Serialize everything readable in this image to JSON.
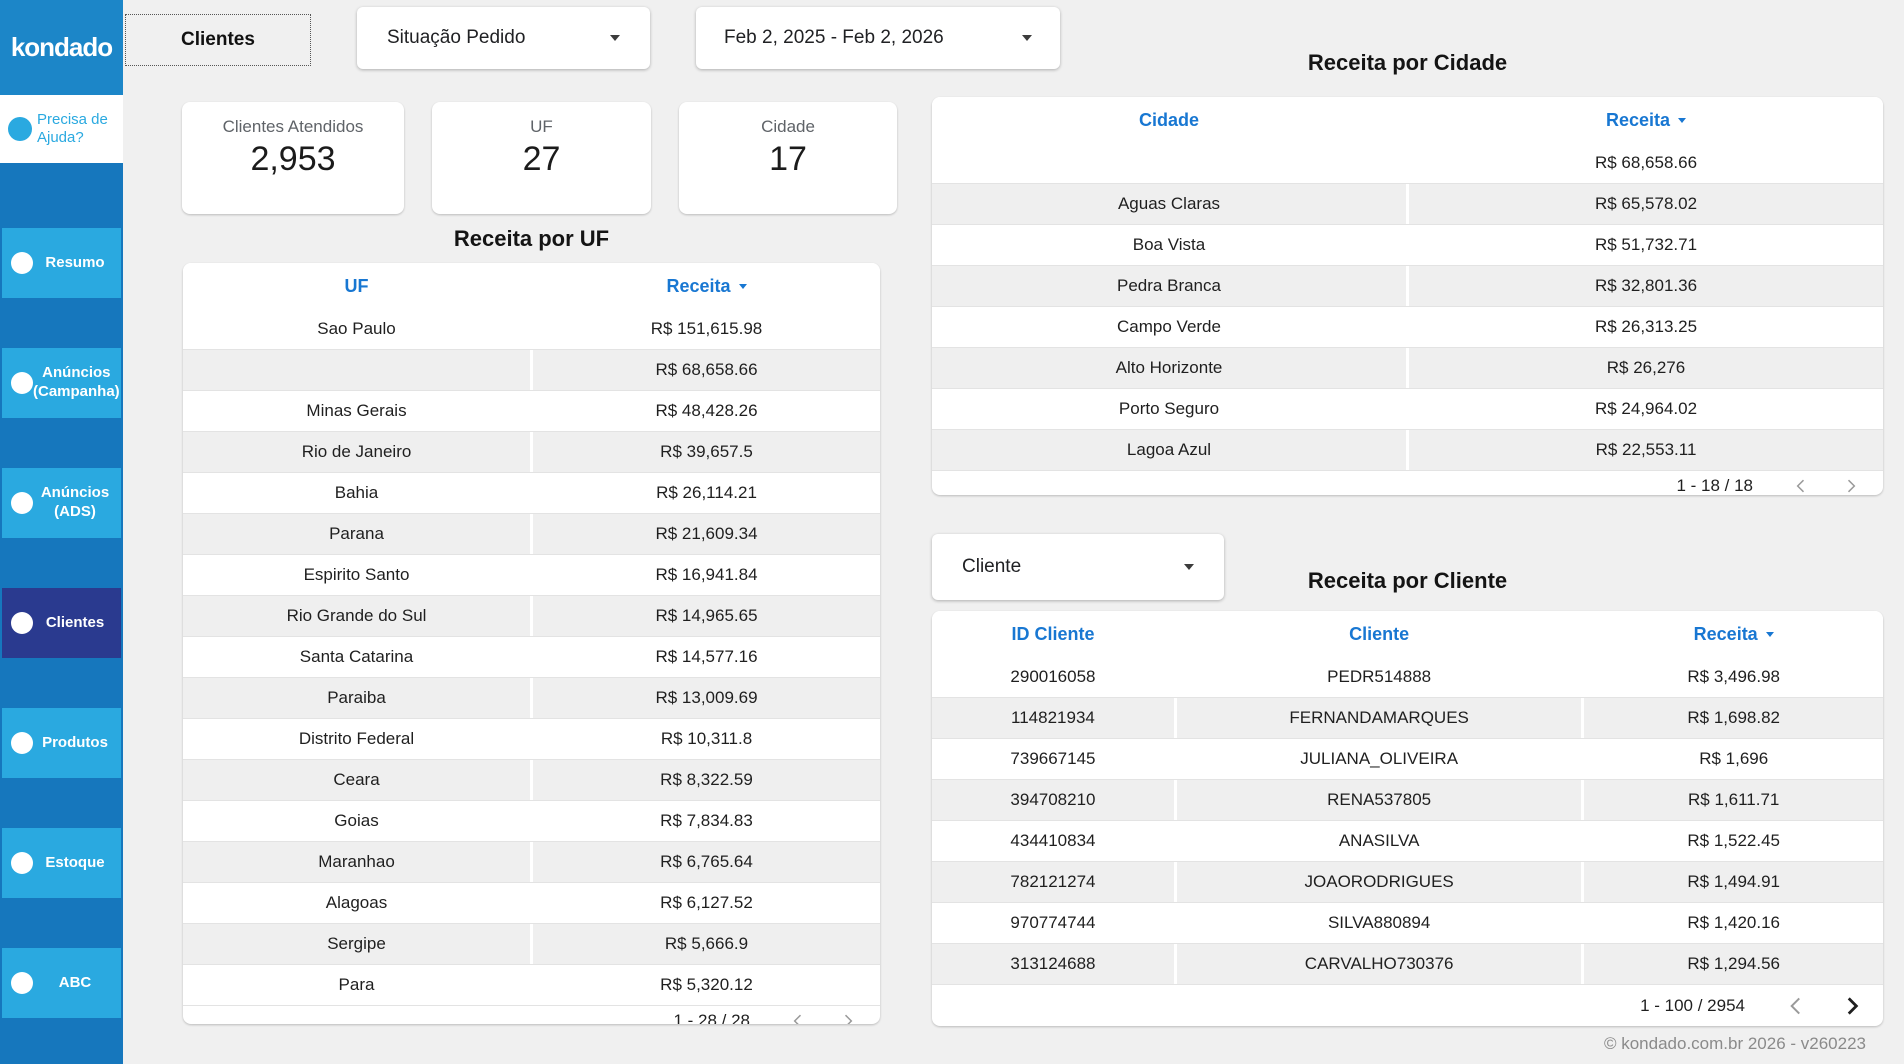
{
  "sidebar": {
    "logo": "kondado",
    "help_label": "Precisa de Ajuda?",
    "items": [
      {
        "label": "Resumo",
        "selected": false
      },
      {
        "label": "Anúncios (Campanha)",
        "selected": false
      },
      {
        "label": "Anúncios (ADS)",
        "selected": false
      },
      {
        "label": "Clientes",
        "selected": true
      },
      {
        "label": "Produtos",
        "selected": false
      },
      {
        "label": "Estoque",
        "selected": false
      },
      {
        "label": "ABC",
        "selected": false
      }
    ]
  },
  "topbar": {
    "page_button": "Clientes",
    "situacao_label": "Situação Pedido",
    "date_range": "Feb 2, 2025 - Feb 2, 2026"
  },
  "scorecards": [
    {
      "label": "Clientes Atendidos",
      "value": "2,953"
    },
    {
      "label": "UF",
      "value": "27"
    },
    {
      "label": "Cidade",
      "value": "17"
    }
  ],
  "cliente_filter": {
    "label": "Cliente"
  },
  "uf_table": {
    "title": "Receita por UF",
    "columns": [
      "UF",
      "Receita"
    ],
    "sorted_column": "Receita",
    "rows": [
      [
        "Sao Paulo",
        "R$ 151,615.98"
      ],
      [
        "",
        "R$ 68,658.66"
      ],
      [
        "Minas Gerais",
        "R$ 48,428.26"
      ],
      [
        "Rio de Janeiro",
        "R$ 39,657.5"
      ],
      [
        "Bahia",
        "R$ 26,114.21"
      ],
      [
        "Parana",
        "R$ 21,609.34"
      ],
      [
        "Espirito Santo",
        "R$ 16,941.84"
      ],
      [
        "Rio Grande do Sul",
        "R$ 14,965.65"
      ],
      [
        "Santa Catarina",
        "R$ 14,577.16"
      ],
      [
        "Paraiba",
        "R$ 13,009.69"
      ],
      [
        "Distrito Federal",
        "R$ 10,311.8"
      ],
      [
        "Ceara",
        "R$ 8,322.59"
      ],
      [
        "Goias",
        "R$ 7,834.83"
      ],
      [
        "Maranhao",
        "R$ 6,765.64"
      ],
      [
        "Alagoas",
        "R$ 6,127.52"
      ],
      [
        "Sergipe",
        "R$ 5,666.9"
      ],
      [
        "Para",
        "R$ 5,320.12"
      ]
    ],
    "pagination": "1 - 28 / 28",
    "prev_active": false,
    "next_active": false
  },
  "cidade_table": {
    "title": "Receita por Cidade",
    "columns": [
      "Cidade",
      "Receita"
    ],
    "sorted_column": "Receita",
    "rows": [
      [
        "",
        "R$ 68,658.66"
      ],
      [
        "Aguas Claras",
        "R$ 65,578.02"
      ],
      [
        "Boa Vista",
        "R$ 51,732.71"
      ],
      [
        "Pedra Branca",
        "R$ 32,801.36"
      ],
      [
        "Campo Verde",
        "R$ 26,313.25"
      ],
      [
        "Alto Horizonte",
        "R$ 26,276"
      ],
      [
        "Porto Seguro",
        "R$ 24,964.02"
      ],
      [
        "Lagoa Azul",
        "R$ 22,553.11"
      ]
    ],
    "pagination": "1 - 18 / 18",
    "prev_active": false,
    "next_active": false
  },
  "cliente_table": {
    "title": "Receita por Cliente",
    "columns": [
      "ID Cliente",
      "Cliente",
      "Receita"
    ],
    "sorted_column": "Receita",
    "rows": [
      [
        "290016058",
        "PEDR514888",
        "R$ 3,496.98"
      ],
      [
        "114821934",
        "FERNANDAMARQUES",
        "R$ 1,698.82"
      ],
      [
        "739667145",
        "JULIANA_OLIVEIRA",
        "R$ 1,696"
      ],
      [
        "394708210",
        "RENA537805",
        "R$ 1,611.71"
      ],
      [
        "434410834",
        "ANASILVA",
        "R$ 1,522.45"
      ],
      [
        "782121274",
        "JOAORODRIGUES",
        "R$ 1,494.91"
      ],
      [
        "970774744",
        "SILVA880894",
        "R$ 1,420.16"
      ],
      [
        "313124688",
        "CARVALHO730376",
        "R$ 1,294.56"
      ]
    ],
    "pagination": "1 - 100 / 2954",
    "prev_active": false,
    "next_active": true
  },
  "footer": {
    "copyright": "© kondado.com.br 2026 - v260223"
  },
  "colors": {
    "page_bg": "#F0F0F0",
    "sidebar_bg": "#1677BD",
    "sidebar_item": "#2AA9E0",
    "sidebar_selected": "#2A3A8F",
    "logo_bg": "#1C86C8",
    "table_header_text": "#1877D2",
    "alt_row": "#EFEFEF"
  }
}
